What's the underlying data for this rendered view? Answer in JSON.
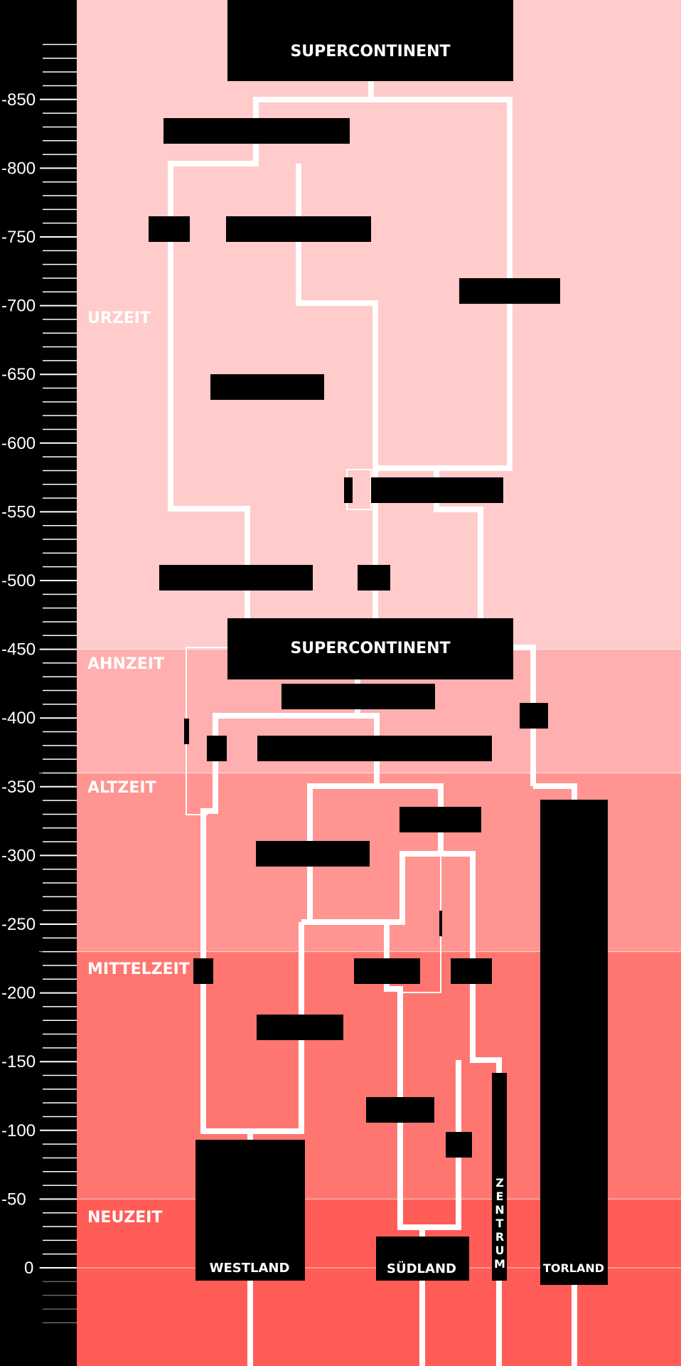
{
  "eras": [
    {
      "label": "URZEIT",
      "from": -900,
      "to": -450,
      "color": "#ffcbcb"
    },
    {
      "label": "AHNZEIT",
      "from": -450,
      "to": -360,
      "color": "#ffafaf"
    },
    {
      "label": "ALTZEIT",
      "from": -360,
      "to": -230,
      "color": "#ff9491"
    },
    {
      "label": "MITTELZEIT",
      "from": -230,
      "to": -50,
      "color": "#ff7671"
    },
    {
      "label": "NEUZEIT",
      "from": -50,
      "to": 70,
      "color": "#ff5c57"
    }
  ],
  "axis": {
    "ticks": [
      -850,
      -800,
      -750,
      -700,
      -650,
      -600,
      -550,
      -500,
      -450,
      -400,
      -350,
      -300,
      -250,
      -200,
      -150,
      -100,
      -50,
      0
    ],
    "tick_labels": [
      "-850",
      "-800",
      "-750",
      "-700",
      "-650",
      "-600",
      "-550",
      "-500",
      "-450",
      "-400",
      "-350",
      "-300",
      "-250",
      "-200",
      "-150",
      "-100",
      "-50",
      "0"
    ]
  },
  "labels": {
    "supercontinent_top": "SUPERCONTINENT",
    "supercontinent_mid": "SUPERCONTINENT",
    "westland": "WESTLAND",
    "suedland": "SÜDLAND",
    "zentrum": "ZENTRUM",
    "torland": "TORLAND"
  },
  "colors": {
    "axis_bg": "#000000",
    "box": "#000000",
    "line": "#ffffff",
    "text": "#ffffff"
  }
}
